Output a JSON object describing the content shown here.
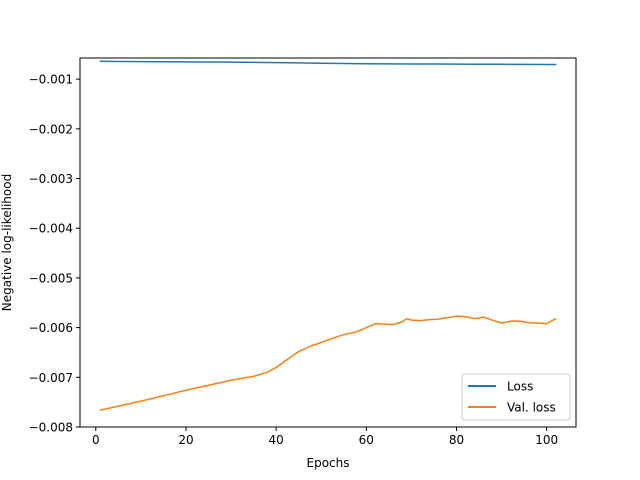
{
  "chart_data": {
    "type": "line",
    "xlabel": "Epochs",
    "ylabel": "Negative log-likelihood",
    "xlim": [
      -3.5,
      106.5
    ],
    "ylim": [
      -0.008,
      -0.000575
    ],
    "xticks": [
      0,
      20,
      40,
      60,
      80,
      100
    ],
    "yticks": [
      -0.008,
      -0.007,
      -0.006,
      -0.005,
      -0.004,
      -0.003,
      -0.002,
      -0.001
    ],
    "xtick_labels": [
      "0",
      "20",
      "40",
      "60",
      "80",
      "100"
    ],
    "ytick_labels": [
      "−0.008",
      "−0.007",
      "−0.006",
      "−0.005",
      "−0.004",
      "−0.003",
      "−0.002",
      "−0.001"
    ],
    "grid": false,
    "legend_position": "lower right",
    "series": [
      {
        "name": "Loss",
        "color": "#1f77b4",
        "x": [
          1,
          5,
          10,
          15,
          20,
          25,
          30,
          35,
          40,
          45,
          50,
          55,
          60,
          65,
          70,
          75,
          80,
          85,
          90,
          95,
          100,
          102
        ],
        "y": [
          -0.00064,
          -0.000645,
          -0.000648,
          -0.00065,
          -0.000652,
          -0.000655,
          -0.000658,
          -0.000662,
          -0.000667,
          -0.000672,
          -0.00068,
          -0.000685,
          -0.00069,
          -0.000693,
          -0.000695,
          -0.000697,
          -0.000699,
          -0.0007,
          -0.000702,
          -0.000703,
          -0.000705,
          -0.000705
        ]
      },
      {
        "name": "Val. loss",
        "color": "#ff7f0e",
        "x": [
          1,
          5,
          10,
          15,
          20,
          25,
          30,
          35,
          38,
          40,
          42,
          45,
          48,
          50,
          52,
          55,
          58,
          60,
          62,
          64,
          66,
          68,
          69,
          70,
          72,
          74,
          76,
          78,
          80,
          82,
          84,
          86,
          88,
          90,
          92,
          94,
          96,
          98,
          100,
          102
        ],
        "y": [
          -0.00766,
          -0.00758,
          -0.00748,
          -0.00737,
          -0.00726,
          -0.00716,
          -0.00706,
          -0.00698,
          -0.0069,
          -0.0068,
          -0.00667,
          -0.00648,
          -0.00636,
          -0.0063,
          -0.00623,
          -0.00614,
          -0.00608,
          -0.006,
          -0.00592,
          -0.00593,
          -0.00594,
          -0.00588,
          -0.00582,
          -0.00585,
          -0.00586,
          -0.00584,
          -0.00583,
          -0.0058,
          -0.00577,
          -0.00578,
          -0.00582,
          -0.00579,
          -0.00585,
          -0.00591,
          -0.00587,
          -0.00587,
          -0.0059,
          -0.00591,
          -0.00592,
          -0.00582
        ]
      }
    ]
  }
}
